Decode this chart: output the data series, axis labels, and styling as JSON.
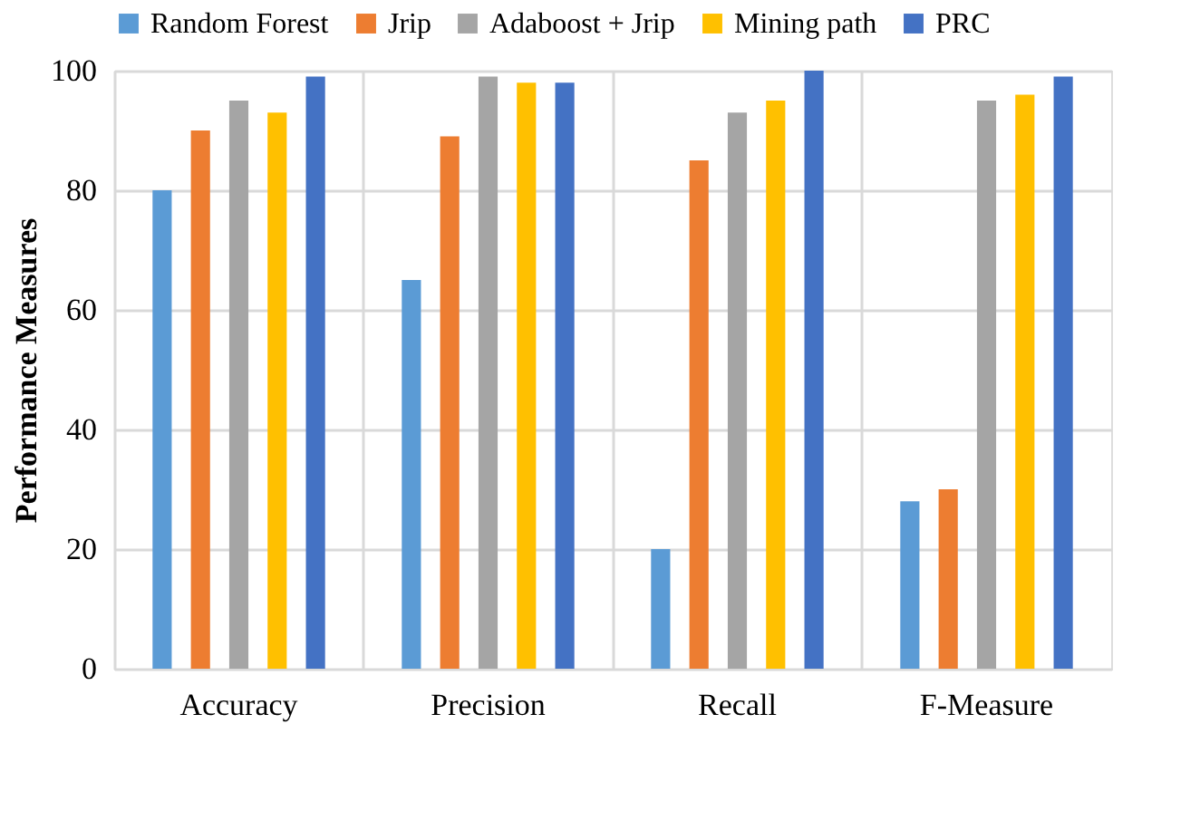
{
  "chart_data": {
    "type": "bar",
    "ylabel": "Performance Measures",
    "categories": [
      "Accuracy",
      "Precision",
      "Recall",
      "F-Measure"
    ],
    "series": [
      {
        "name": "Random Forest",
        "color": "#5b9bd5",
        "values": [
          80,
          65,
          20,
          28
        ]
      },
      {
        "name": "Jrip",
        "color": "#ed7d31",
        "values": [
          90,
          89,
          85,
          30
        ]
      },
      {
        "name": "Adaboost + Jrip",
        "color": "#a5a5a5",
        "values": [
          95,
          99,
          93,
          95
        ]
      },
      {
        "name": "Mining path",
        "color": "#ffc000",
        "values": [
          93,
          98,
          95,
          96
        ]
      },
      {
        "name": "PRC",
        "color": "#4472c4",
        "values": [
          99,
          98,
          100,
          99
        ]
      }
    ],
    "ylim": [
      0,
      100
    ],
    "yticks": [
      0,
      20,
      40,
      60,
      80,
      100
    ],
    "grid": true,
    "legend": "top"
  }
}
